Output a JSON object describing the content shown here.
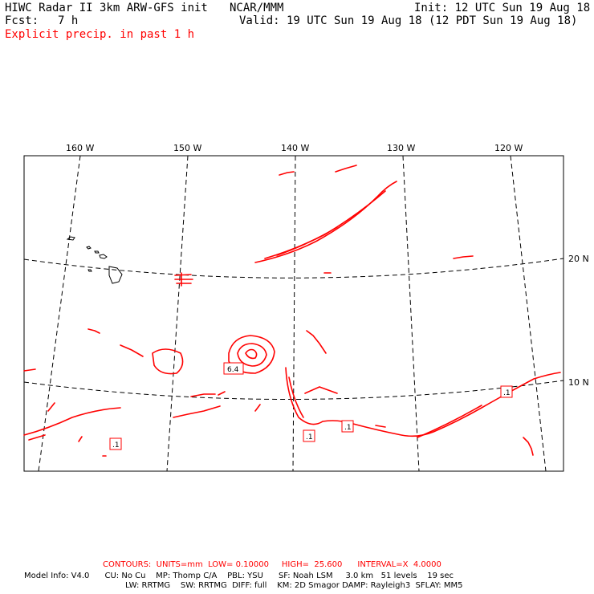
{
  "header": {
    "title": "HIWC Radar II 3km ARW-GFS init",
    "center": "NCAR/MMM",
    "init": "Init: 12 UTC Sun 19 Aug 18",
    "fcst_label": "Fcst:",
    "fcst_value": "7 h",
    "valid": "Valid: 19 UTC Sun 19 Aug 18 (12 PDT Sun 19 Aug 18)",
    "field": "Explicit precip. in past 1 h"
  },
  "map": {
    "longitudes": [
      "160 W",
      "150 W",
      "140 W",
      "130 W",
      "120 W"
    ],
    "latitudes": [
      "20 N",
      "10 N"
    ],
    "contour_labels": [
      "6.4",
      ".1",
      ".1",
      ".1",
      ".1"
    ],
    "precip_color": "#ff0000"
  },
  "footer": {
    "contours": "CONTOURS:  UNITS=mm  LOW= 0.10000     HIGH=  25.600      INTERVAL=X  4.0000",
    "model_line1": "Model Info: V4.0      CU: No Cu    MP: Thomp C/A    PBL: YSU      SF: Noah LSM     3.0 km   51 levels    19 sec",
    "model_line2": "LW: RRTMG    SW: RRTMG  DIFF: full    KM: 2D Smagor DAMP: Rayleigh3  SFLAY: MM5"
  }
}
